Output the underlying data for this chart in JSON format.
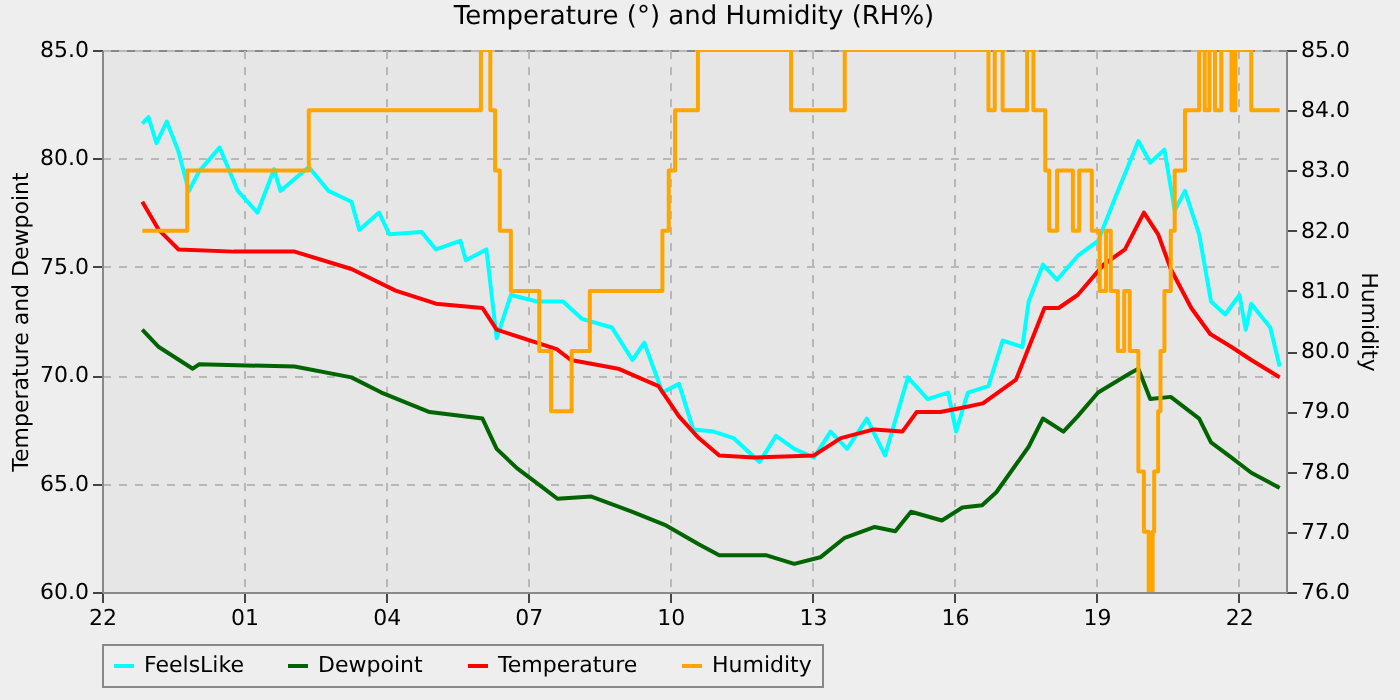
{
  "chart_data": {
    "type": "line",
    "title": "Temperature (°) and Humidity (RH%)",
    "ylabel": "Temperature and Dewpoint",
    "y2label": "Humidity",
    "xlim": [
      "--01-01T22:00",
      "--01-02T23:00"
    ],
    "xticks": [
      {
        "value": "--01-01T22:00",
        "label": "22"
      },
      {
        "value": "--01-02T01:00",
        "label": "01"
      },
      {
        "value": "--01-02T04:00",
        "label": "04"
      },
      {
        "value": "--01-02T07:00",
        "label": "07"
      },
      {
        "value": "--01-02T10:00",
        "label": "10"
      },
      {
        "value": "--01-02T13:00",
        "label": "13"
      },
      {
        "value": "--01-02T16:00",
        "label": "16"
      },
      {
        "value": "--01-02T19:00",
        "label": "19"
      },
      {
        "value": "--01-02T22:00",
        "label": "22"
      }
    ],
    "ylim": [
      60,
      85
    ],
    "yticks": [
      {
        "value": 60,
        "label": "60.0"
      },
      {
        "value": 65,
        "label": "65.0"
      },
      {
        "value": 70,
        "label": "70.0"
      },
      {
        "value": 75,
        "label": "75.0"
      },
      {
        "value": 80,
        "label": "80.0"
      },
      {
        "value": 85,
        "label": "85.0"
      }
    ],
    "y2lim": [
      76,
      85
    ],
    "y2ticks": [
      {
        "value": 76,
        "label": "76.0"
      },
      {
        "value": 77,
        "label": "77.0"
      },
      {
        "value": 78,
        "label": "78.0"
      },
      {
        "value": 79,
        "label": "79.0"
      },
      {
        "value": 80,
        "label": "80.0"
      },
      {
        "value": 81,
        "label": "81.0"
      },
      {
        "value": 82,
        "label": "82.0"
      },
      {
        "value": 83,
        "label": "83.0"
      },
      {
        "value": 84,
        "label": "84.0"
      },
      {
        "value": 85,
        "label": "85.0"
      }
    ],
    "grid": true,
    "legend": "bottom",
    "series": [
      {
        "name": "FeelsLike",
        "color": "#00ffff",
        "x": [
          "--01-01T22:51",
          "--01-01T22:59",
          "--01-01T23:09",
          "--01-01T23:22",
          "--01-01T23:37",
          "--01-01T23:50",
          "--01-02T00:03",
          "--01-02T00:29",
          "--01-02T00:52",
          "--01-02T01:17",
          "--01-02T01:38",
          "--01-02T01:46",
          "--01-02T02:22",
          "--01-02T02:47",
          "--01-02T03:16",
          "--01-02T03:26",
          "--01-02T03:51",
          "--01-02T04:04",
          "--01-02T04:45",
          "--01-02T05:03",
          "--01-02T05:34",
          "--01-02T05:41",
          "--01-02T06:07",
          "--01-02T06:20",
          "--01-02T06:38",
          "--01-02T07:11",
          "--01-02T07:44",
          "--01-02T08:08",
          "--01-02T08:46",
          "--01-02T09:12",
          "--01-02T09:27",
          "--01-02T09:50",
          "--01-02T10:11",
          "--01-02T10:29",
          "--01-02T10:55",
          "--01-02T11:20",
          "--01-02T11:53",
          "--01-02T12:14",
          "--01-02T12:37",
          "--01-02T13:02",
          "--01-02T13:23",
          "--01-02T13:44",
          "--01-02T14:09",
          "--01-02T14:32",
          "--01-02T15:01",
          "--01-02T15:26",
          "--01-02T15:52",
          "--01-02T16:02",
          "--01-02T16:17",
          "--01-02T16:43",
          "--01-02T17:01",
          "--01-02T17:26",
          "--01-02T17:34",
          "--01-02T17:52",
          "--01-02T18:10",
          "--01-02T18:36",
          "--01-02T19:02",
          "--01-02T19:27",
          "--01-02T19:53",
          "--01-02T20:08",
          "--01-02T20:26",
          "--01-02T20:39",
          "--01-02T20:52",
          "--01-02T21:10",
          "--01-02T21:25",
          "--01-02T21:43",
          "--01-02T22:01",
          "--01-02T22:09",
          "--01-02T22:16",
          "--01-02T22:40",
          "--01-02T22:52"
        ],
        "values": [
          81.6,
          81.9,
          80.7,
          81.7,
          80.3,
          78.5,
          79.4,
          80.5,
          78.5,
          77.5,
          79.5,
          78.5,
          79.6,
          78.5,
          78.0,
          76.7,
          77.5,
          76.5,
          76.6,
          75.8,
          76.2,
          75.3,
          75.8,
          71.7,
          73.7,
          73.4,
          73.4,
          72.6,
          72.2,
          70.7,
          71.5,
          69.2,
          69.6,
          67.5,
          67.4,
          67.1,
          66.0,
          67.2,
          66.6,
          66.2,
          67.4,
          66.6,
          68.0,
          66.3,
          69.9,
          68.9,
          69.2,
          67.4,
          69.2,
          69.5,
          71.6,
          71.3,
          73.4,
          75.1,
          74.4,
          75.5,
          76.2,
          78.5,
          80.8,
          79.8,
          80.4,
          77.6,
          78.5,
          76.5,
          73.4,
          72.8,
          73.7,
          72.1,
          73.3,
          72.2,
          70.4
        ]
      },
      {
        "name": "Dewpoint",
        "color": "#006400",
        "x": [
          "--01-01T22:51",
          "--01-01T23:12",
          "--01-01T23:55",
          "--01-02T00:03",
          "--01-02T02:04",
          "--01-02T03:16",
          "--01-02T03:54",
          "--01-02T04:55",
          "--01-02T06:02",
          "--01-02T06:20",
          "--01-02T06:46",
          "--01-02T07:19",
          "--01-02T07:37",
          "--01-02T08:20",
          "--01-02T09:12",
          "--01-02T09:53",
          "--01-02T10:36",
          "--01-02T11:02",
          "--01-02T12:01",
          "--01-02T12:37",
          "--01-02T13:10",
          "--01-02T13:41",
          "--01-02T14:19",
          "--01-02T14:45",
          "--01-02T15:05",
          "--01-02T15:44",
          "--01-02T16:10",
          "--01-02T16:35",
          "--01-02T16:53",
          "--01-02T17:34",
          "--01-02T17:52",
          "--01-02T18:18",
          "--01-02T18:36",
          "--01-02T19:02",
          "--01-02T19:43",
          "--01-02T19:53",
          "--01-02T20:08",
          "--01-02T20:34",
          "--01-02T21:10",
          "--01-02T21:25",
          "--01-02T21:51",
          "--01-02T22:16",
          "--01-02T22:52"
        ],
        "values": [
          72.1,
          71.3,
          70.3,
          70.5,
          70.4,
          69.9,
          69.2,
          68.3,
          68.0,
          66.6,
          65.7,
          64.8,
          64.3,
          64.4,
          63.7,
          63.1,
          62.2,
          61.7,
          61.7,
          61.3,
          61.6,
          62.5,
          63.0,
          62.8,
          63.7,
          63.3,
          63.9,
          64.0,
          64.6,
          66.7,
          68.0,
          67.4,
          68.1,
          69.2,
          70.1,
          70.3,
          68.9,
          69.0,
          68.0,
          66.9,
          66.2,
          65.5,
          64.8
        ]
      },
      {
        "name": "Temperature",
        "color": "#ff0000",
        "x": [
          "--01-01T22:51",
          "--01-01T23:12",
          "--01-01T23:37",
          "--01-02T00:47",
          "--01-02T02:04",
          "--01-02T03:16",
          "--01-02T04:12",
          "--01-02T05:03",
          "--01-02T06:02",
          "--01-02T06:20",
          "--01-02T07:36",
          "--01-02T07:54",
          "--01-02T08:54",
          "--01-02T09:45",
          "--01-02T10:11",
          "--01-02T10:36",
          "--01-02T11:02",
          "--01-02T11:46",
          "--01-02T13:02",
          "--01-02T13:36",
          "--01-02T14:18",
          "--01-02T14:54",
          "--01-02T15:12",
          "--01-02T15:42",
          "--01-02T16:10",
          "--01-02T16:36",
          "--01-02T17:18",
          "--01-02T17:54",
          "--01-02T18:12",
          "--01-02T18:36",
          "--01-02T19:09",
          "--01-02T19:36",
          "--01-02T20:00",
          "--01-02T20:18",
          "--01-02T20:34",
          "--01-02T21:00",
          "--01-02T21:24",
          "--01-02T21:51",
          "--01-02T22:16",
          "--01-02T22:52"
        ],
        "values": [
          78.0,
          76.7,
          75.8,
          75.7,
          75.7,
          74.9,
          73.9,
          73.3,
          73.1,
          72.1,
          71.2,
          70.7,
          70.3,
          69.5,
          68.1,
          67.1,
          66.3,
          66.2,
          66.3,
          67.1,
          67.5,
          67.4,
          68.3,
          68.3,
          68.5,
          68.7,
          69.8,
          73.1,
          73.1,
          73.7,
          75.1,
          75.8,
          77.5,
          76.5,
          74.9,
          73.1,
          71.9,
          71.3,
          70.7,
          69.9
        ]
      },
      {
        "name": "Humidity",
        "color": "#ffa500",
        "type": "step",
        "axis": "y2",
        "x": [
          "--01-01T22:51",
          "--01-01T23:48",
          "--01-02T02:22",
          "--01-02T06:00",
          "--01-02T06:12",
          "--01-02T06:18",
          "--01-02T06:24",
          "--01-02T06:38",
          "--01-02T07:14",
          "--01-02T07:29",
          "--01-02T07:55",
          "--01-02T08:18",
          "--01-02T09:50",
          "--01-02T09:58",
          "--01-02T10:06",
          "--01-02T10:35",
          "--01-02T12:33",
          "--01-02T13:41",
          "--01-02T16:43",
          "--01-02T16:51",
          "--01-02T17:01",
          "--01-02T17:32",
          "--01-02T17:40",
          "--01-02T17:55",
          "--01-02T18:00",
          "--01-02T18:10",
          "--01-02T18:30",
          "--01-02T18:38",
          "--01-02T18:54",
          "--01-02T19:04",
          "--01-02T19:12",
          "--01-02T19:18",
          "--01-02T19:27",
          "--01-02T19:35",
          "--01-02T19:42",
          "--01-02T19:53",
          "--01-02T20:00",
          "--01-02T20:06",
          "--01-02T20:11",
          "--01-02T20:13",
          "--01-02T20:18",
          "--01-02T20:21",
          "--01-02T20:26",
          "--01-02T20:34",
          "--01-02T20:39",
          "--01-02T20:52",
          "--01-02T21:10",
          "--01-02T21:17",
          "--01-02T21:23",
          "--01-02T21:30",
          "--01-02T21:38",
          "--01-02T21:51",
          "--01-02T21:56",
          "--01-02T22:16",
          "--01-02T22:52"
        ],
        "values": [
          82,
          83,
          84,
          85,
          84,
          83,
          82,
          81,
          80,
          79,
          80,
          81,
          82,
          83,
          84,
          85,
          84,
          85,
          84,
          85,
          84,
          85,
          84,
          83,
          82,
          83,
          82,
          83,
          82,
          81,
          82,
          81,
          80,
          81,
          80,
          78,
          77,
          76,
          77,
          78,
          79,
          80,
          81,
          82,
          83,
          84,
          85,
          84,
          85,
          84,
          85,
          84,
          85,
          84,
          84
        ]
      }
    ]
  }
}
